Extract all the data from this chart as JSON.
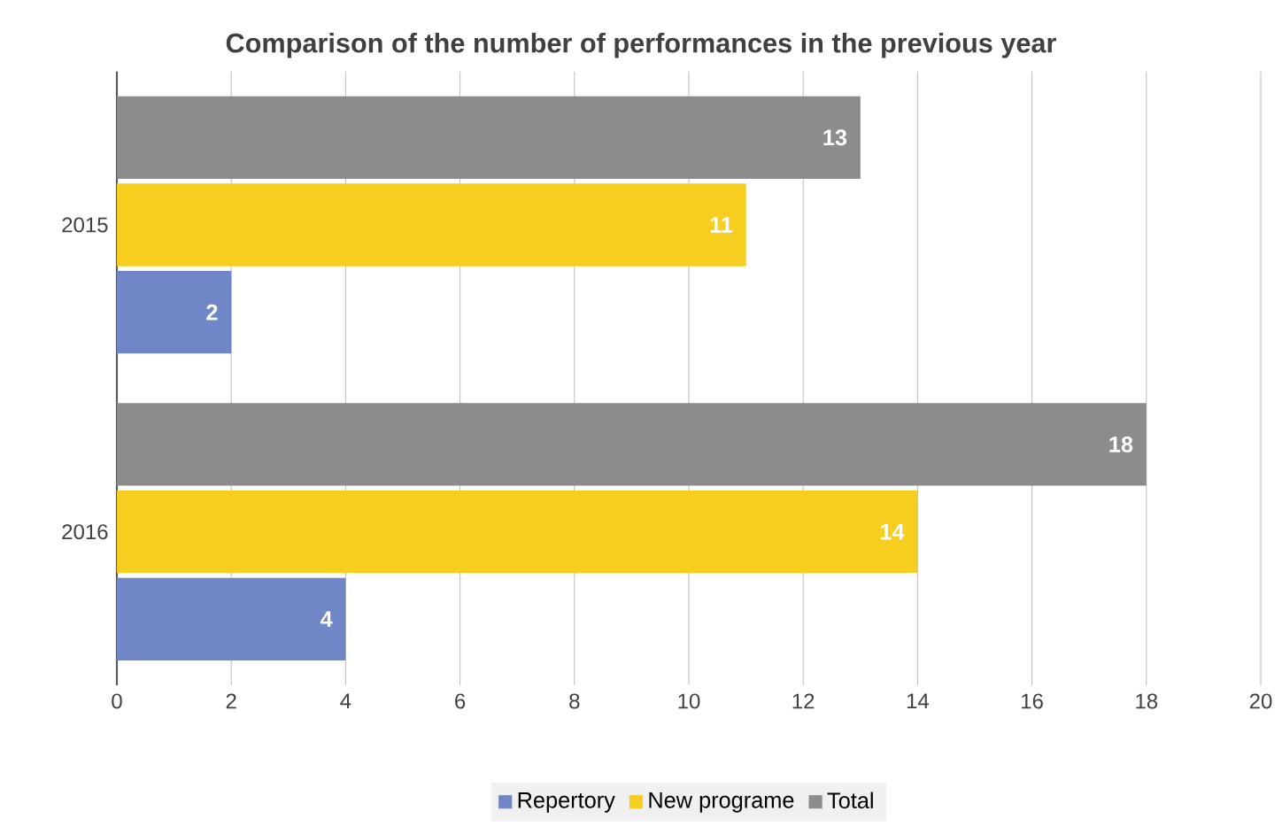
{
  "chart_data": {
    "type": "bar",
    "orientation": "horizontal",
    "title": "Comparison of the number of performances in the previous year",
    "categories": [
      "2015",
      "2016"
    ],
    "series": [
      {
        "name": "Repertory",
        "color": "#6f87c6",
        "values": [
          2,
          4
        ]
      },
      {
        "name": "New programe",
        "color": "#f7cd1f",
        "values": [
          11,
          14
        ]
      },
      {
        "name": "Total",
        "color": "#8c8c8c",
        "values": [
          13,
          18
        ]
      }
    ],
    "xlim": [
      0,
      20
    ],
    "xticks": [
      0,
      2,
      4,
      6,
      8,
      10,
      12,
      14,
      16,
      18,
      20
    ],
    "grid": "x",
    "legend": "bottom",
    "data_labels": true
  }
}
